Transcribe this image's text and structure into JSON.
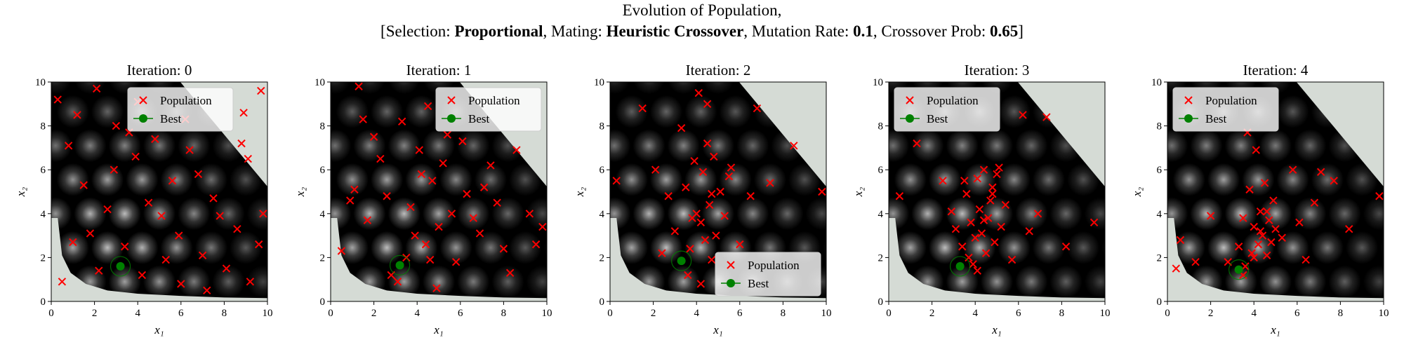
{
  "figure": {
    "title": "Evolution of Population,",
    "subtitle_runs": [
      {
        "text": "[Selection: ",
        "bold": false
      },
      {
        "text": "Proportional",
        "bold": true
      },
      {
        "text": ", Mating: ",
        "bold": false
      },
      {
        "text": "Heuristic Crossover",
        "bold": true
      },
      {
        "text": ", Mutation Rate: ",
        "bold": false
      },
      {
        "text": "0.1",
        "bold": true
      },
      {
        "text": ", Crossover Prob: ",
        "bold": false
      },
      {
        "text": "0.65",
        "bold": true
      },
      {
        "text": "]",
        "bold": false
      }
    ]
  },
  "chart_data": [
    {
      "type": "scatter",
      "title": "Iteration: 0",
      "xlabel": "x₁",
      "ylabel": "x₂",
      "xlim": [
        0,
        10
      ],
      "ylim": [
        0,
        10
      ],
      "xticks": [
        0,
        2,
        4,
        6,
        8,
        10
      ],
      "yticks": [
        0,
        2,
        4,
        6,
        8,
        10
      ],
      "legend": "upper center",
      "series": [
        {
          "name": "Population",
          "color": "#ff0000",
          "marker": "x",
          "x": [
            0.3,
            0.8,
            1.2,
            1.5,
            2.1,
            2.6,
            3.0,
            3.4,
            3.9,
            4.2,
            4.8,
            5.1,
            5.6,
            6.0,
            6.4,
            7.0,
            7.5,
            8.1,
            8.6,
            9.2,
            9.6,
            0.5,
            1.8,
            2.9,
            4.5,
            5.3,
            6.8,
            7.8,
            8.8,
            9.7,
            2.2,
            3.6,
            5.9,
            7.2,
            1.0,
            4.0,
            6.2,
            8.9,
            9.1,
            9.8
          ],
          "y": [
            9.2,
            7.1,
            8.5,
            5.3,
            9.7,
            4.2,
            8.0,
            2.5,
            6.6,
            1.2,
            7.4,
            3.9,
            5.5,
            0.8,
            6.9,
            2.1,
            4.7,
            1.5,
            3.3,
            0.9,
            2.6,
            0.9,
            3.1,
            6.0,
            4.5,
            1.9,
            5.8,
            3.9,
            7.2,
            9.6,
            1.4,
            7.7,
            3.0,
            0.5,
            2.7,
            9.1,
            8.3,
            8.6,
            6.5,
            4.0
          ]
        },
        {
          "name": "Best",
          "color": "#008000",
          "marker": "o",
          "x": [
            3.2
          ],
          "y": [
            1.6
          ]
        }
      ]
    },
    {
      "type": "scatter",
      "title": "Iteration: 1",
      "xlabel": "x₁",
      "ylabel": "x₂",
      "xlim": [
        0,
        10
      ],
      "ylim": [
        0,
        10
      ],
      "xticks": [
        0,
        2,
        4,
        6,
        8,
        10
      ],
      "yticks": [
        0,
        2,
        4,
        6,
        8,
        10
      ],
      "legend": "upper right",
      "series": [
        {
          "name": "Population",
          "color": "#ff0000",
          "marker": "x",
          "x": [
            0.5,
            1.1,
            1.7,
            2.3,
            2.8,
            3.3,
            3.7,
            4.1,
            4.4,
            4.7,
            5.0,
            5.4,
            5.8,
            6.3,
            6.9,
            7.4,
            8.0,
            8.6,
            9.2,
            9.8,
            1.5,
            2.6,
            3.5,
            4.2,
            4.9,
            5.6,
            6.1,
            7.1,
            8.3,
            9.5,
            2.0,
            3.9,
            4.5,
            5.2,
            0.9,
            6.6,
            3.1,
            4.6,
            7.7,
            1.3
          ],
          "y": [
            2.3,
            5.1,
            3.7,
            6.5,
            1.2,
            8.2,
            4.3,
            6.9,
            2.6,
            5.5,
            3.4,
            7.6,
            1.8,
            4.9,
            3.1,
            6.2,
            2.4,
            6.9,
            4.0,
            3.4,
            8.3,
            4.8,
            2.0,
            5.8,
            0.6,
            4.0,
            7.3,
            5.2,
            1.3,
            2.6,
            7.5,
            3.0,
            8.9,
            6.3,
            4.6,
            3.8,
            0.9,
            1.9,
            4.5,
            9.8
          ]
        },
        {
          "name": "Best",
          "color": "#008000",
          "marker": "o",
          "x": [
            3.2
          ],
          "y": [
            1.65
          ]
        }
      ]
    },
    {
      "type": "scatter",
      "title": "Iteration: 2",
      "xlabel": "x₁",
      "ylabel": "x₂",
      "xlim": [
        0,
        10
      ],
      "ylim": [
        0,
        10
      ],
      "xticks": [
        0,
        2,
        4,
        6,
        8,
        10
      ],
      "yticks": [
        0,
        2,
        4,
        6,
        8,
        10
      ],
      "legend": "lower right",
      "series": [
        {
          "name": "Population",
          "color": "#ff0000",
          "marker": "x",
          "x": [
            0.3,
            1.5,
            2.1,
            2.7,
            3.0,
            3.3,
            3.5,
            3.7,
            3.9,
            4.0,
            4.1,
            4.2,
            4.3,
            4.4,
            4.5,
            4.6,
            4.7,
            4.8,
            4.9,
            5.1,
            5.3,
            5.6,
            6.0,
            6.5,
            6.8,
            7.4,
            8.5,
            9.8,
            3.6,
            4.2,
            4.5,
            3.8,
            4.7,
            2.4,
            5.5
          ],
          "y": [
            5.5,
            8.8,
            6.0,
            4.8,
            3.2,
            7.9,
            5.2,
            2.4,
            6.4,
            4.0,
            9.5,
            3.6,
            5.9,
            2.8,
            7.2,
            4.4,
            1.9,
            6.6,
            3.0,
            5.0,
            3.9,
            6.1,
            2.6,
            4.8,
            8.8,
            5.4,
            7.1,
            5.0,
            1.2,
            0.8,
            9.0,
            3.8,
            4.9,
            2.2,
            5.7
          ]
        },
        {
          "name": "Best",
          "color": "#008000",
          "marker": "o",
          "x": [
            3.3
          ],
          "y": [
            1.85
          ]
        }
      ]
    },
    {
      "type": "scatter",
      "title": "Iteration: 3",
      "xlabel": "x₁",
      "ylabel": "x₂",
      "xlim": [
        0,
        10
      ],
      "ylim": [
        0,
        10
      ],
      "xticks": [
        0,
        2,
        4,
        6,
        8,
        10
      ],
      "yticks": [
        0,
        2,
        4,
        6,
        8,
        10
      ],
      "legend": "upper left",
      "series": [
        {
          "name": "Population",
          "color": "#ff0000",
          "marker": "x",
          "x": [
            0.5,
            1.3,
            2.5,
            3.1,
            3.4,
            3.6,
            3.8,
            3.9,
            4.0,
            4.1,
            4.2,
            4.3,
            4.4,
            4.5,
            4.6,
            4.7,
            4.8,
            4.9,
            5.0,
            5.2,
            5.4,
            5.7,
            6.2,
            6.5,
            7.3,
            8.2,
            9.5,
            3.5,
            4.1,
            4.4,
            4.8,
            3.7,
            5.1,
            2.9,
            6.9
          ],
          "y": [
            4.8,
            7.2,
            5.5,
            3.3,
            2.5,
            4.9,
            3.6,
            1.7,
            2.9,
            5.6,
            4.2,
            3.1,
            6.0,
            2.2,
            3.8,
            4.6,
            5.2,
            2.7,
            5.8,
            3.4,
            4.4,
            1.9,
            8.5,
            3.2,
            8.4,
            2.5,
            3.6,
            5.5,
            1.4,
            3.7,
            4.9,
            2.0,
            6.1,
            4.1,
            4.0
          ]
        },
        {
          "name": "Best",
          "color": "#008000",
          "marker": "o",
          "x": [
            3.3
          ],
          "y": [
            1.6
          ]
        }
      ]
    },
    {
      "type": "scatter",
      "title": "Iteration: 4",
      "xlabel": "x₁",
      "ylabel": "x₂",
      "xlim": [
        0,
        10
      ],
      "ylim": [
        0,
        10
      ],
      "xticks": [
        0,
        2,
        4,
        6,
        8,
        10
      ],
      "yticks": [
        0,
        2,
        4,
        6,
        8,
        10
      ],
      "legend": "upper left",
      "series": [
        {
          "name": "Population",
          "color": "#ff0000",
          "marker": "x",
          "x": [
            0.4,
            0.6,
            1.3,
            2.0,
            2.8,
            3.3,
            3.5,
            3.6,
            3.8,
            3.9,
            4.0,
            4.1,
            4.2,
            4.3,
            4.4,
            4.5,
            4.6,
            4.7,
            4.9,
            5.0,
            5.3,
            5.8,
            6.4,
            6.8,
            7.7,
            8.4,
            9.8,
            3.7,
            4.0,
            4.3,
            4.6,
            3.5,
            4.8,
            6.1,
            7.1
          ],
          "y": [
            1.5,
            2.8,
            1.8,
            3.9,
            1.8,
            2.5,
            3.8,
            1.6,
            5.1,
            2.2,
            3.4,
            6.9,
            2.6,
            4.1,
            3.0,
            5.4,
            2.1,
            3.7,
            4.6,
            3.3,
            2.9,
            6.0,
            1.9,
            4.5,
            5.5,
            3.3,
            4.8,
            7.7,
            2.0,
            3.2,
            4.1,
            1.2,
            2.7,
            3.6,
            5.9
          ]
        },
        {
          "name": "Best",
          "color": "#008000",
          "marker": "o",
          "x": [
            3.3
          ],
          "y": [
            1.45
          ]
        }
      ]
    }
  ]
}
